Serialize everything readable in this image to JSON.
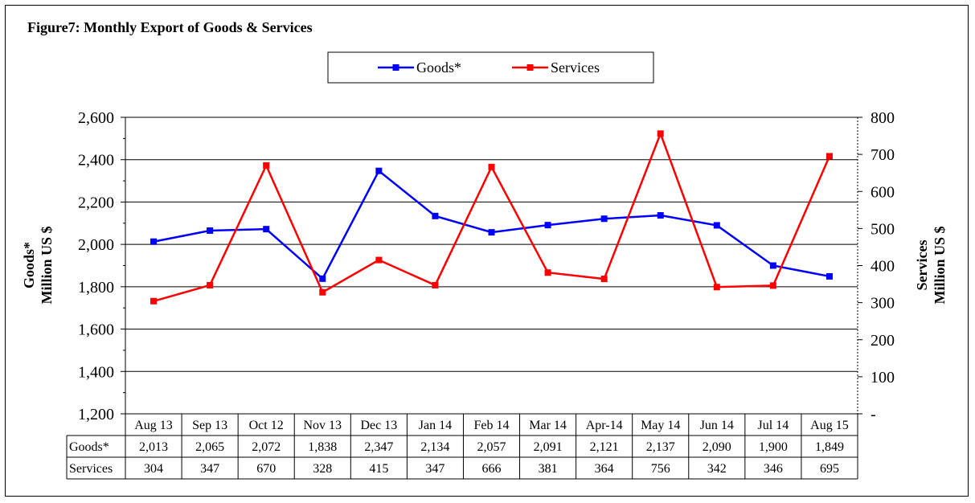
{
  "figure_title": "Figure7: Monthly Export of Goods & Services",
  "chart_data": {
    "type": "line",
    "categories": [
      "Aug 13",
      "Sep 13",
      "Oct 12",
      "Nov 13",
      "Dec 13",
      "Jan 14",
      "Feb 14",
      "Mar 14",
      "Apr-14",
      "May 14",
      "Jun 14",
      "Jul 14",
      "Aug 15"
    ],
    "series": [
      {
        "name": "Goods*",
        "axis": "left",
        "color": "#0000ff",
        "values": [
          2013,
          2065,
          2072,
          1838,
          2347,
          2134,
          2057,
          2091,
          2121,
          2137,
          2090,
          1900,
          1849
        ]
      },
      {
        "name": "Services",
        "axis": "right",
        "color": "#ff0000",
        "values": [
          304,
          347,
          670,
          328,
          415,
          347,
          666,
          381,
          364,
          756,
          342,
          346,
          695
        ]
      }
    ],
    "y_left": {
      "label_line1": "Goods*",
      "label_line2": "Million US $",
      "min": 1200,
      "max": 2600,
      "ticks": [
        "1,200",
        "1,400",
        "1,600",
        "1,800",
        "2,000",
        "2,200",
        "2,400",
        "2,600"
      ]
    },
    "y_right": {
      "label_line1": "Services",
      "label_line2": "Million US $",
      "min": 0,
      "max": 800,
      "ticks": [
        "-",
        "100",
        "200",
        "300",
        "400",
        "500",
        "600",
        "700",
        "800"
      ]
    },
    "grid": true,
    "legend_position": "top-center",
    "data_table": {
      "row_labels": [
        "Goods*",
        "Services"
      ],
      "rows": [
        [
          "2,013",
          "2,065",
          "2,072",
          "1,838",
          "2,347",
          "2,134",
          "2,057",
          "2,091",
          "2,121",
          "2,137",
          "2,090",
          "1,900",
          "1,849"
        ],
        [
          "304",
          "347",
          "670",
          "328",
          "415",
          "347",
          "666",
          "381",
          "364",
          "756",
          "342",
          "346",
          "695"
        ]
      ]
    }
  }
}
